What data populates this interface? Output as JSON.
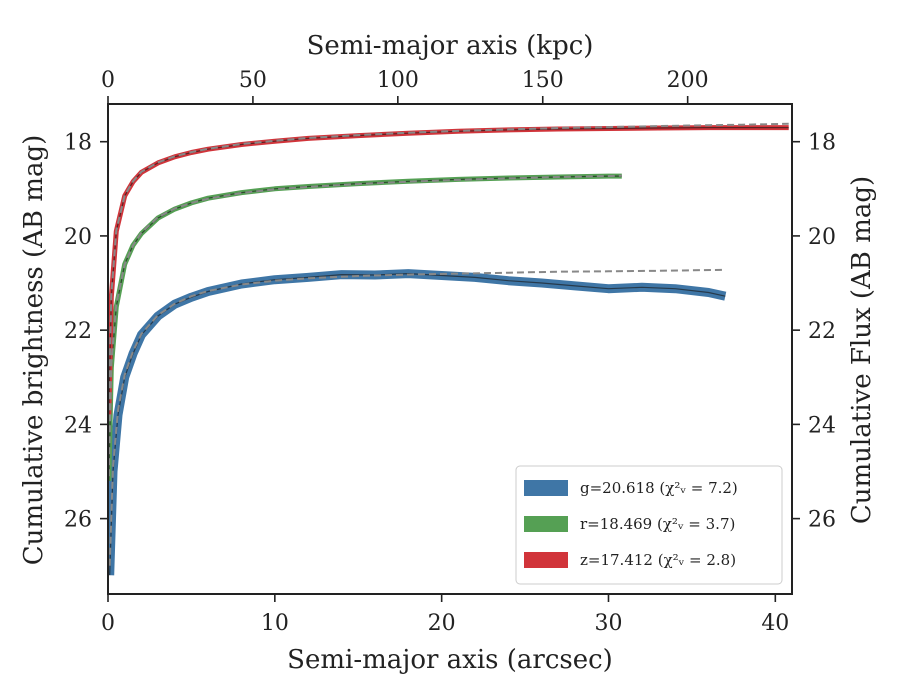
{
  "chart_data": {
    "type": "line",
    "xlabel": "Semi-major axis (arcsec)",
    "ylabel": "Cumulative brightness (AB mag)",
    "top_xlabel": "Semi-major axis (kpc)",
    "right_ylabel": "Cumulative Flux (AB mag)",
    "xlim": [
      0,
      41
    ],
    "ylim": [
      27.6,
      17.2
    ],
    "y_inverted": true,
    "top_xlim": [
      0,
      236
    ],
    "x_ticks": [
      "0",
      "10",
      "20",
      "30",
      "40"
    ],
    "y_ticks": [
      "18",
      "20",
      "22",
      "24",
      "26"
    ],
    "top_x_ticks": [
      "0",
      "50",
      "100",
      "150",
      "200"
    ],
    "grid": false,
    "legend_position": "lower-right",
    "series": [
      {
        "name": "g=20.618 (χ²ᵥ = 7.2)",
        "color": "#3f76a6",
        "x": [
          0.1,
          0.3,
          0.6,
          1,
          1.5,
          2,
          3,
          4,
          5,
          6,
          8,
          10,
          12,
          14,
          16,
          18,
          20,
          22,
          24,
          26,
          28,
          30,
          32,
          34,
          36,
          37
        ],
        "y": [
          27.2,
          25.0,
          23.8,
          23.0,
          22.5,
          22.1,
          21.7,
          21.45,
          21.3,
          21.18,
          21.02,
          20.93,
          20.88,
          20.82,
          20.83,
          20.8,
          20.84,
          20.88,
          20.95,
          21.0,
          21.06,
          21.12,
          21.09,
          21.12,
          21.2,
          21.28
        ]
      },
      {
        "name": "r=18.469 (χ²ᵥ = 3.7)",
        "color": "#55a054",
        "x": [
          0.05,
          0.2,
          0.5,
          1,
          1.5,
          2,
          3,
          4,
          5,
          6,
          8,
          10,
          12,
          15,
          18,
          21,
          24,
          27,
          30,
          30.8
        ],
        "y": [
          25.2,
          22.8,
          21.5,
          20.6,
          20.2,
          19.95,
          19.62,
          19.43,
          19.3,
          19.2,
          19.08,
          19.0,
          18.95,
          18.89,
          18.84,
          18.8,
          18.77,
          18.75,
          18.73,
          18.73
        ]
      },
      {
        "name": "z=17.412 (χ²ᵥ = 2.8)",
        "color": "#d1343a",
        "x": [
          0.05,
          0.2,
          0.5,
          1,
          1.5,
          2,
          3,
          4,
          5,
          6,
          8,
          10,
          12,
          15,
          18,
          21,
          24,
          27,
          30,
          33,
          36,
          38,
          40.8
        ],
        "y": [
          23.8,
          21.3,
          19.9,
          19.15,
          18.85,
          18.65,
          18.45,
          18.32,
          18.23,
          18.16,
          18.06,
          17.99,
          17.93,
          17.87,
          17.82,
          17.78,
          17.75,
          17.73,
          17.72,
          17.71,
          17.7,
          17.7,
          17.7
        ]
      }
    ],
    "model_fits": [
      {
        "color": "#888888",
        "x": [
          0.1,
          0.3,
          0.6,
          1,
          1.5,
          2,
          3,
          4,
          5,
          6,
          8,
          10,
          12,
          15,
          18,
          21,
          24,
          27,
          30,
          33,
          37
        ],
        "y": [
          27.0,
          24.9,
          23.7,
          22.95,
          22.45,
          22.08,
          21.68,
          21.44,
          21.28,
          21.17,
          21.03,
          20.95,
          20.9,
          20.85,
          20.82,
          20.8,
          20.78,
          20.76,
          20.75,
          20.74,
          20.72
        ]
      },
      {
        "color": "#888888",
        "x": [
          0.05,
          0.2,
          0.5,
          1,
          1.5,
          2,
          3,
          4,
          5,
          6,
          8,
          10,
          12,
          15,
          18,
          21,
          24,
          27,
          30,
          30.8
        ],
        "y": [
          25.1,
          22.7,
          21.45,
          20.6,
          20.2,
          19.93,
          19.6,
          19.42,
          19.3,
          19.21,
          19.09,
          19.01,
          18.96,
          18.9,
          18.85,
          18.81,
          18.78,
          18.75,
          18.73,
          18.72
        ]
      },
      {
        "color": "#888888",
        "x": [
          0.05,
          0.2,
          0.5,
          1,
          1.5,
          2,
          3,
          4,
          5,
          6,
          8,
          10,
          12,
          15,
          18,
          21,
          24,
          27,
          30,
          33,
          36,
          38,
          40.8
        ],
        "y": [
          23.7,
          21.25,
          19.88,
          19.14,
          18.84,
          18.64,
          18.44,
          18.31,
          18.22,
          18.15,
          18.05,
          17.98,
          17.92,
          17.86,
          17.81,
          17.77,
          17.74,
          17.71,
          17.69,
          17.67,
          17.65,
          17.64,
          17.62
        ]
      }
    ]
  }
}
